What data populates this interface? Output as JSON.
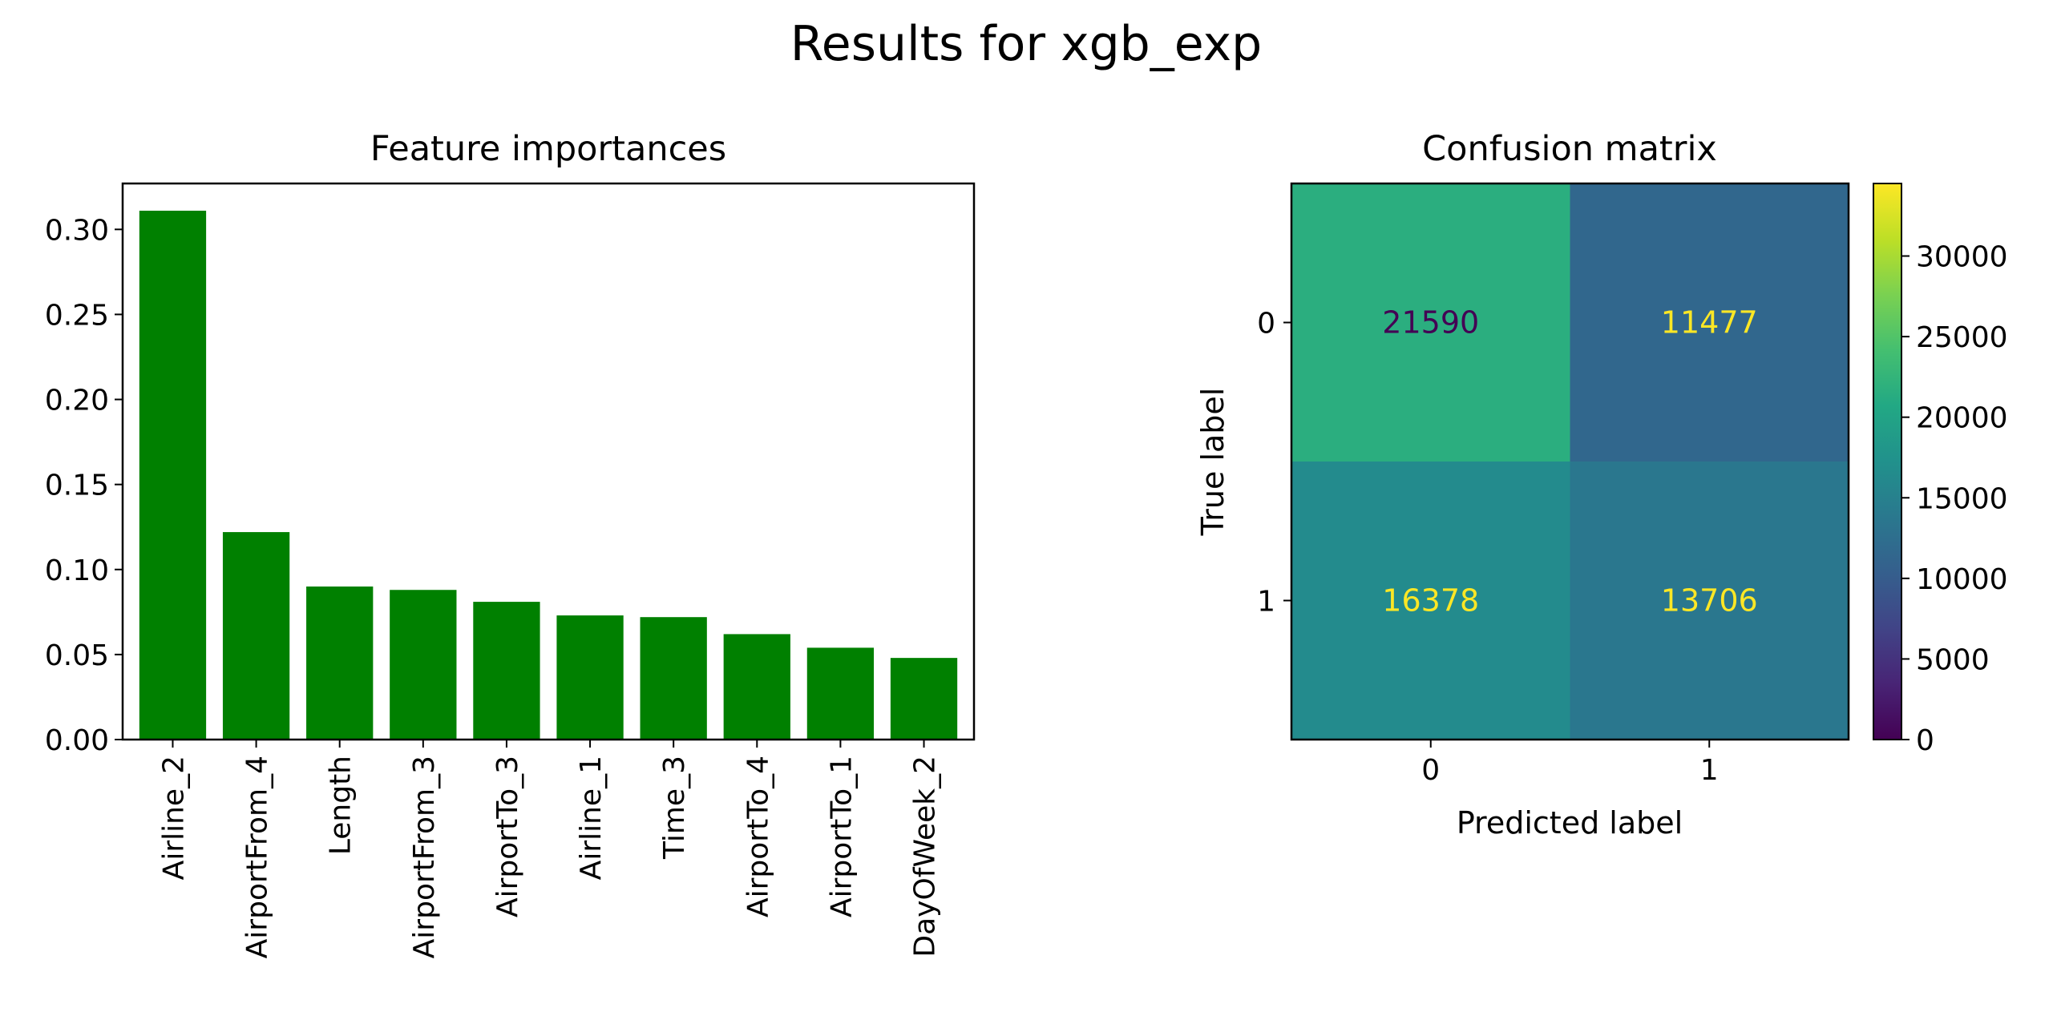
{
  "figure": {
    "suptitle": "Results for xgb_exp"
  },
  "chart_data": [
    {
      "type": "bar",
      "title": "Feature importances",
      "xlabel": "",
      "ylabel": "",
      "categories": [
        "Airline_2",
        "AirportFrom_4",
        "Length",
        "AirportFrom_3",
        "AirportTo_3",
        "Airline_1",
        "Time_3",
        "AirportTo_4",
        "AirportTo_1",
        "DayOfWeek_2"
      ],
      "values": [
        0.311,
        0.122,
        0.09,
        0.088,
        0.081,
        0.073,
        0.072,
        0.062,
        0.054,
        0.048
      ],
      "ylim": [
        0,
        0.327
      ],
      "yticks": [
        0.0,
        0.05,
        0.1,
        0.15,
        0.2,
        0.25,
        0.3
      ],
      "ytick_labels": [
        "0.00",
        "0.05",
        "0.10",
        "0.15",
        "0.20",
        "0.25",
        "0.30"
      ],
      "bar_color": "#008000",
      "grid": false
    },
    {
      "type": "heatmap",
      "title": "Confusion matrix",
      "xlabel": "Predicted label",
      "ylabel": "True label",
      "x_categories": [
        "0",
        "1"
      ],
      "y_categories": [
        "0",
        "1"
      ],
      "matrix": [
        [
          21590,
          11477
        ],
        [
          16378,
          13706
        ]
      ],
      "colormap": "viridis",
      "colorbar": {
        "range": [
          0,
          34500
        ],
        "ticks": [
          0,
          5000,
          10000,
          15000,
          20000,
          25000,
          30000
        ],
        "tick_labels": [
          "0",
          "5000",
          "10000",
          "15000",
          "20000",
          "25000",
          "30000"
        ]
      },
      "cell_label_colors": {
        "dark": "#440154",
        "light": "#fde725"
      }
    }
  ]
}
